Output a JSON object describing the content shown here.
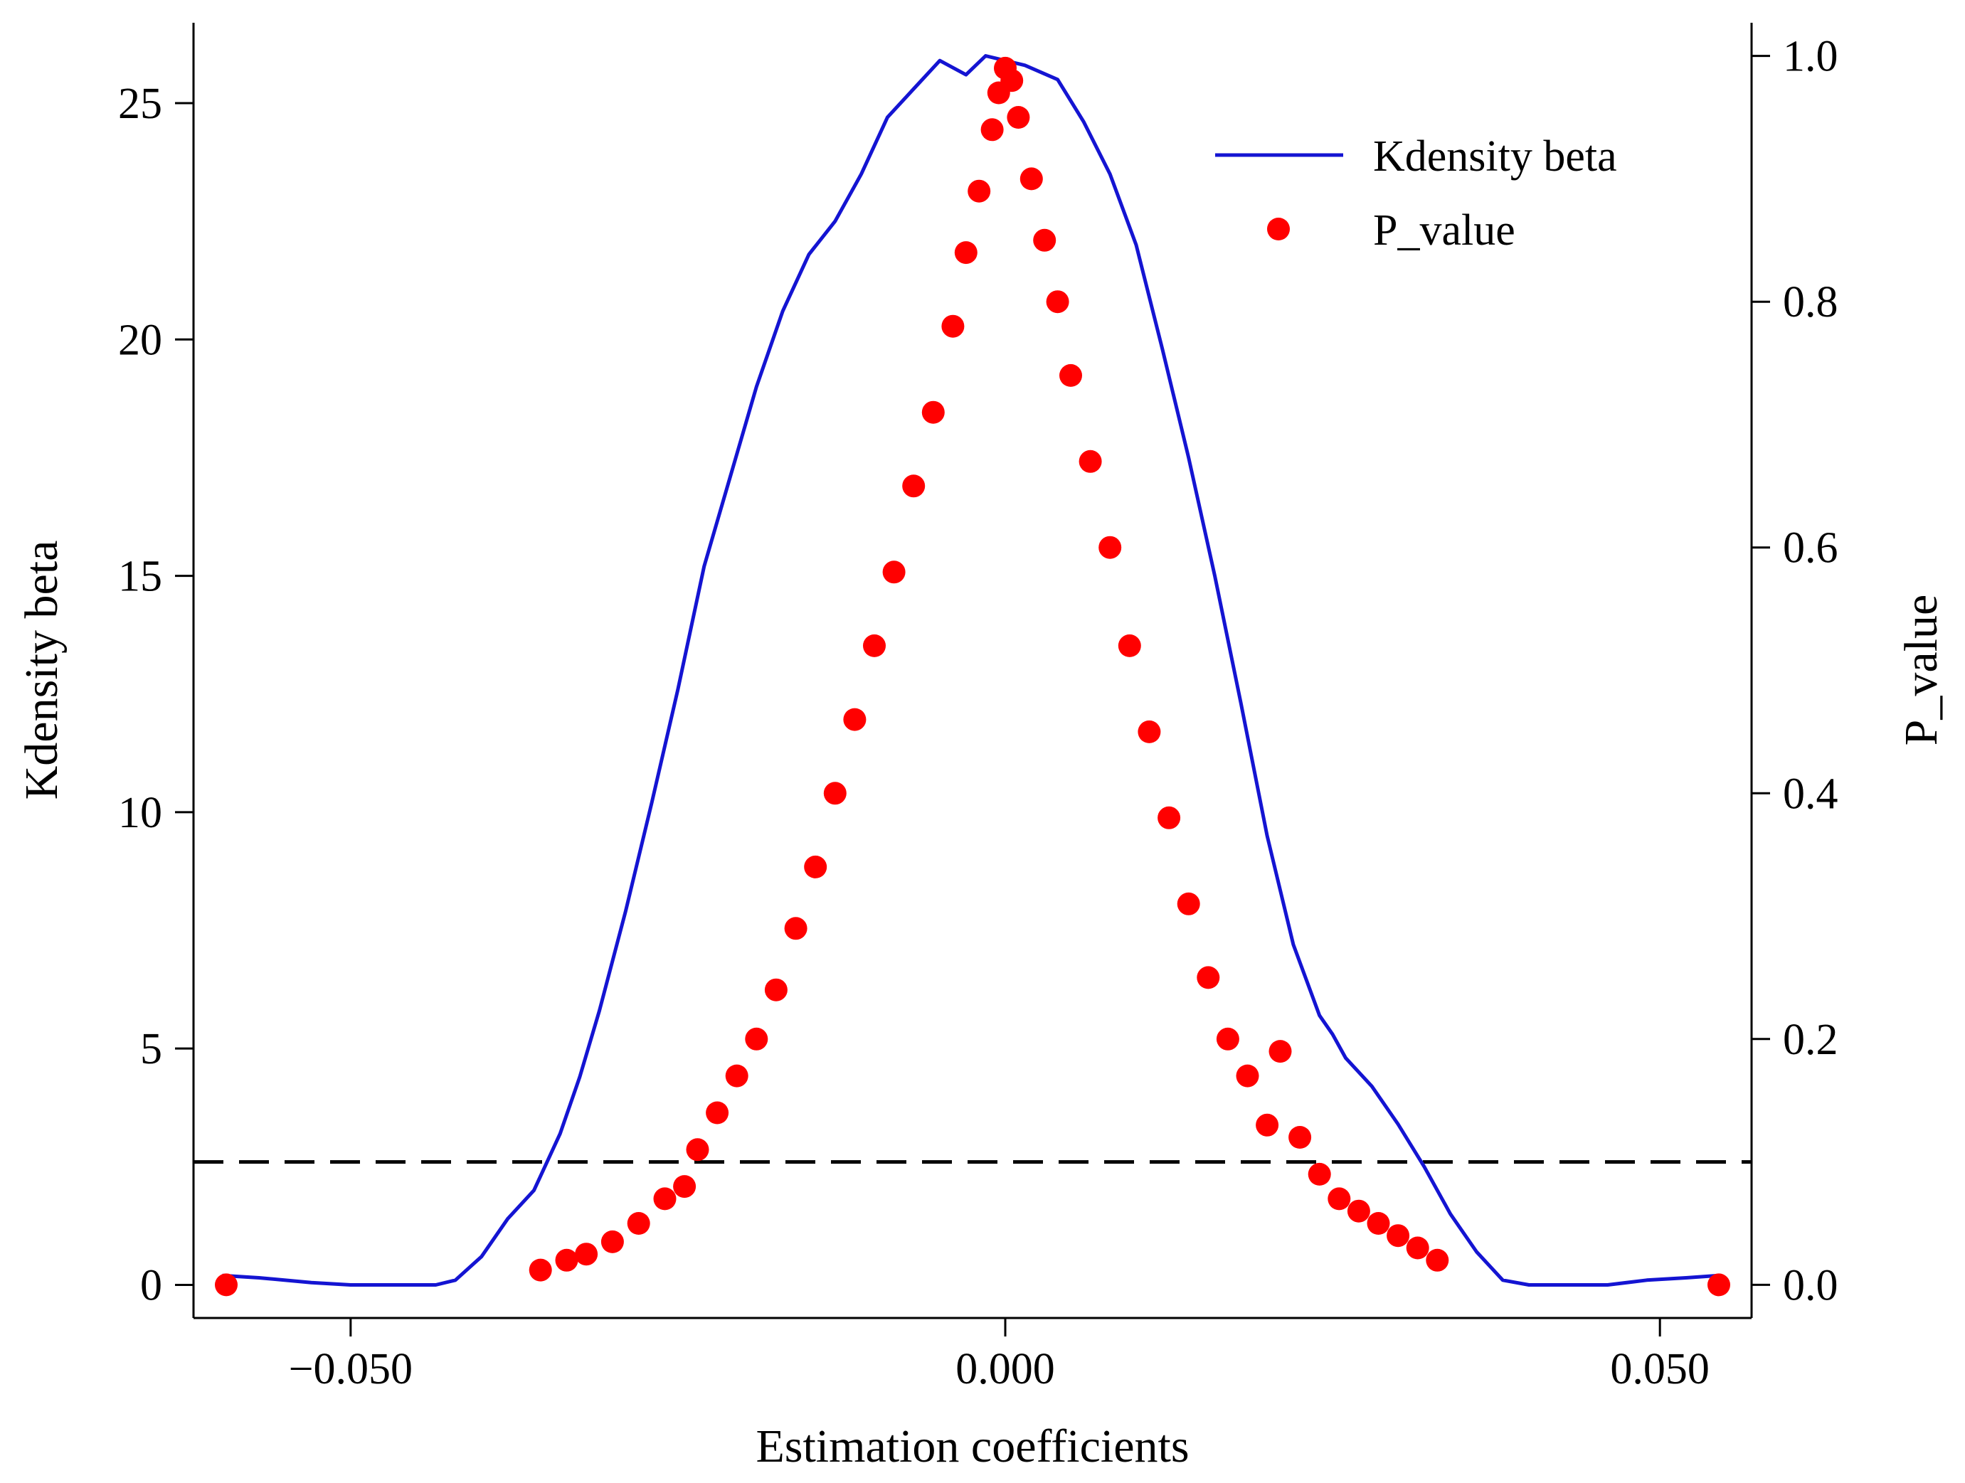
{
  "chart_data": {
    "type": "line+scatter",
    "title": "",
    "xlabel": "Estimation coefficients",
    "ylabel_left": "Kdensity beta",
    "ylabel_right": "P_value",
    "xlim": [
      -0.062,
      0.057
    ],
    "ylim_left": [
      -0.7,
      26.7
    ],
    "ylim_right": [
      -0.027,
      1.027
    ],
    "x_ticks": [
      {
        "value": -0.05,
        "label": "−0.050"
      },
      {
        "value": 0.0,
        "label": "0.000"
      },
      {
        "value": 0.05,
        "label": "0.050"
      }
    ],
    "y_left_ticks": [
      {
        "value": 0,
        "label": "0"
      },
      {
        "value": 5,
        "label": "5"
      },
      {
        "value": 10,
        "label": "10"
      },
      {
        "value": 15,
        "label": "15"
      },
      {
        "value": 20,
        "label": "20"
      },
      {
        "value": 25,
        "label": "25"
      }
    ],
    "y_right_ticks": [
      {
        "value": 0.0,
        "label": "0.0"
      },
      {
        "value": 0.2,
        "label": "0.2"
      },
      {
        "value": 0.4,
        "label": "0.4"
      },
      {
        "value": 0.6,
        "label": "0.6"
      },
      {
        "value": 0.8,
        "label": "0.8"
      },
      {
        "value": 1.0,
        "label": "1.0"
      }
    ],
    "reference_line": {
      "axis": "right",
      "value": 0.1,
      "style": "dashed",
      "color": "#000000"
    },
    "legend": {
      "position": "top-right",
      "entries": [
        {
          "label": "Kdensity beta",
          "kind": "line",
          "color": "#1414d2"
        },
        {
          "label": "P_value",
          "kind": "marker",
          "color": "#ff0000"
        }
      ]
    },
    "series": [
      {
        "name": "Kdensity beta",
        "type": "line",
        "axis": "left",
        "color": "#1414d2",
        "x": [
          -0.0598,
          -0.057,
          -0.053,
          -0.05,
          -0.046,
          -0.0435,
          -0.042,
          -0.04,
          -0.038,
          -0.036,
          -0.034,
          -0.0325,
          -0.031,
          -0.029,
          -0.027,
          -0.025,
          -0.023,
          -0.021,
          -0.019,
          -0.017,
          -0.015,
          -0.013,
          -0.011,
          -0.009,
          -0.007,
          -0.005,
          -0.003,
          -0.0015,
          0.0,
          0.0015,
          0.004,
          0.006,
          0.008,
          0.01,
          0.012,
          0.014,
          0.016,
          0.018,
          0.02,
          0.022,
          0.024,
          0.025,
          0.026,
          0.028,
          0.03,
          0.032,
          0.034,
          0.036,
          0.038,
          0.04,
          0.0415,
          0.044,
          0.046,
          0.049,
          0.052,
          0.0545
        ],
        "y": [
          0.2,
          0.15,
          0.05,
          0.0,
          0.0,
          0.0,
          0.1,
          0.6,
          1.4,
          2.0,
          3.2,
          4.4,
          5.8,
          7.9,
          10.2,
          12.6,
          15.2,
          17.1,
          19.0,
          20.6,
          21.8,
          22.5,
          23.5,
          24.7,
          25.3,
          25.9,
          25.6,
          26.0,
          25.9,
          25.8,
          25.5,
          24.6,
          23.5,
          22.0,
          19.8,
          17.5,
          15.0,
          12.3,
          9.5,
          7.2,
          5.7,
          5.3,
          4.8,
          4.2,
          3.4,
          2.5,
          1.5,
          0.7,
          0.1,
          0.0,
          0.0,
          0.0,
          0.0,
          0.1,
          0.15,
          0.2
        ]
      },
      {
        "name": "P_value",
        "type": "scatter",
        "axis": "right",
        "color": "#ff0000",
        "x": [
          -0.0595,
          -0.0355,
          -0.0335,
          -0.032,
          -0.03,
          -0.028,
          -0.026,
          -0.0245,
          -0.0235,
          -0.022,
          -0.0205,
          -0.019,
          -0.0175,
          -0.016,
          -0.0145,
          -0.013,
          -0.0115,
          -0.01,
          -0.0085,
          -0.007,
          -0.0055,
          -0.004,
          -0.003,
          -0.002,
          -0.001,
          -0.0005,
          0.0,
          0.0005,
          0.001,
          0.002,
          0.003,
          0.004,
          0.005,
          0.0065,
          0.008,
          0.0095,
          0.011,
          0.0125,
          0.014,
          0.0155,
          0.017,
          0.0185,
          0.02,
          0.021,
          0.0225,
          0.024,
          0.0255,
          0.027,
          0.0285,
          0.03,
          0.0315,
          0.033,
          0.0545
        ],
        "y": [
          0.0,
          0.012,
          0.02,
          0.025,
          0.035,
          0.05,
          0.07,
          0.08,
          0.11,
          0.14,
          0.17,
          0.2,
          0.24,
          0.29,
          0.34,
          0.4,
          0.46,
          0.52,
          0.58,
          0.65,
          0.71,
          0.78,
          0.84,
          0.89,
          0.94,
          0.97,
          0.99,
          0.98,
          0.95,
          0.9,
          0.85,
          0.8,
          0.74,
          0.67,
          0.6,
          0.52,
          0.45,
          0.38,
          0.31,
          0.25,
          0.2,
          0.17,
          0.13,
          0.19,
          0.12,
          0.09,
          0.07,
          0.06,
          0.05,
          0.04,
          0.03,
          0.02,
          0.0
        ]
      }
    ]
  }
}
